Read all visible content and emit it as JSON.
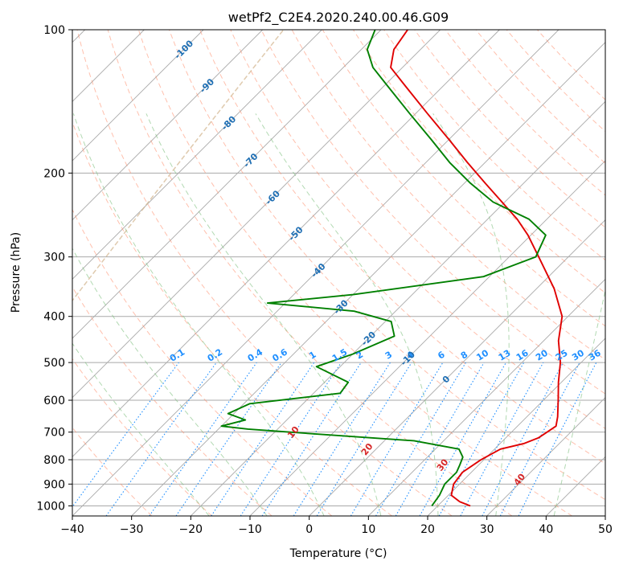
{
  "chart_data": {
    "type": "line",
    "subtype": "skew-T log-p diagram",
    "title": "wetPf2_C2E4.2020.240.00.46.G09",
    "xlabel": "Temperature (°C)",
    "ylabel": "Pressure (hPa)",
    "xlim": [
      -40,
      50
    ],
    "ylim": [
      1050,
      100
    ],
    "y_scale": "log",
    "x_ticks": [
      -40,
      -30,
      -20,
      -10,
      0,
      10,
      20,
      30,
      40,
      50
    ],
    "x_tick_labels": [
      "−40",
      "−30",
      "−20",
      "−10",
      "0",
      "10",
      "20",
      "30",
      "40",
      "50"
    ],
    "y_ticks": [
      100,
      200,
      300,
      400,
      500,
      600,
      700,
      800,
      900,
      1000
    ],
    "y_tick_labels": [
      "100",
      "200",
      "300",
      "400",
      "500",
      "600",
      "700",
      "800",
      "900",
      "1000"
    ],
    "grid": "horizontal isobars and skewed isotherms",
    "colors": {
      "temperature": "#e00000",
      "dewpoint": "#008000",
      "dry_adiabat": "#ff8c69",
      "moist_adiabat": "#7fbf7f",
      "mixing_ratio": "#1f8fff",
      "dry_label": "#d62728",
      "moist_label": "#1f6fb4",
      "grid": "#a9a9a9",
      "ccl_curve": "#d2b48c"
    },
    "series": [
      {
        "role": "temperature",
        "points": [
          {
            "p": 1000,
            "t": 25.5
          },
          {
            "p": 980,
            "t": 23.0
          },
          {
            "p": 950,
            "t": 20.5
          },
          {
            "p": 900,
            "t": 19.0
          },
          {
            "p": 850,
            "t": 18.5
          },
          {
            "p": 800,
            "t": 19.5
          },
          {
            "p": 760,
            "t": 21.0
          },
          {
            "p": 740,
            "t": 24.0
          },
          {
            "p": 720,
            "t": 25.5
          },
          {
            "p": 700,
            "t": 26.0
          },
          {
            "p": 680,
            "t": 26.5
          },
          {
            "p": 650,
            "t": 25.2
          },
          {
            "p": 600,
            "t": 22.5
          },
          {
            "p": 550,
            "t": 19.5
          },
          {
            "p": 500,
            "t": 16.5
          },
          {
            "p": 450,
            "t": 12.5
          },
          {
            "p": 400,
            "t": 9.0
          },
          {
            "p": 350,
            "t": 3.0
          },
          {
            "p": 300,
            "t": -5.0
          },
          {
            "p": 270,
            "t": -10.5
          },
          {
            "p": 250,
            "t": -15.0
          },
          {
            "p": 230,
            "t": -20.5
          },
          {
            "p": 210,
            "t": -26.5
          },
          {
            "p": 190,
            "t": -33.0
          },
          {
            "p": 170,
            "t": -40.0
          },
          {
            "p": 150,
            "t": -48.0
          },
          {
            "p": 130,
            "t": -57.0
          },
          {
            "p": 120,
            "t": -62.0
          },
          {
            "p": 110,
            "t": -64.5
          },
          {
            "p": 100,
            "t": -65.5
          }
        ]
      },
      {
        "role": "dewpoint",
        "points": [
          {
            "p": 1000,
            "t": 19.0
          },
          {
            "p": 950,
            "t": 18.5
          },
          {
            "p": 900,
            "t": 17.5
          },
          {
            "p": 850,
            "t": 17.5
          },
          {
            "p": 820,
            "t": 16.8
          },
          {
            "p": 790,
            "t": 16.0
          },
          {
            "p": 760,
            "t": 14.0
          },
          {
            "p": 730,
            "t": 5.0
          },
          {
            "p": 710,
            "t": -10.0
          },
          {
            "p": 690,
            "t": -25.0
          },
          {
            "p": 680,
            "t": -30.0
          },
          {
            "p": 660,
            "t": -27.0
          },
          {
            "p": 640,
            "t": -31.0
          },
          {
            "p": 610,
            "t": -29.0
          },
          {
            "p": 580,
            "t": -15.5
          },
          {
            "p": 550,
            "t": -16.0
          },
          {
            "p": 510,
            "t": -24.0
          },
          {
            "p": 480,
            "t": -20.0
          },
          {
            "p": 440,
            "t": -16.0
          },
          {
            "p": 410,
            "t": -19.0
          },
          {
            "p": 390,
            "t": -27.0
          },
          {
            "p": 375,
            "t": -43.0
          },
          {
            "p": 360,
            "t": -30.0
          },
          {
            "p": 330,
            "t": -11.0
          },
          {
            "p": 300,
            "t": -5.5
          },
          {
            "p": 270,
            "t": -7.5
          },
          {
            "p": 250,
            "t": -13.0
          },
          {
            "p": 230,
            "t": -22.0
          },
          {
            "p": 210,
            "t": -29.0
          },
          {
            "p": 190,
            "t": -36.0
          },
          {
            "p": 170,
            "t": -43.0
          },
          {
            "p": 150,
            "t": -51.0
          },
          {
            "p": 130,
            "t": -60.0
          },
          {
            "p": 120,
            "t": -65.0
          },
          {
            "p": 110,
            "t": -69.0
          },
          {
            "p": 100,
            "t": -71.0
          }
        ]
      }
    ],
    "dry_adiabats_C": [
      -30,
      -20,
      -10,
      0,
      10,
      20,
      30,
      40,
      50,
      60,
      70,
      80,
      90,
      100,
      110,
      120,
      130,
      140,
      150,
      160,
      170
    ],
    "dry_adiabat_labels": [
      {
        "text": "10",
        "theta": 10
      },
      {
        "text": "20",
        "theta": 20
      },
      {
        "text": "30",
        "theta": 30
      },
      {
        "text": "40",
        "theta": 40
      }
    ],
    "moist_adiabats_C": [
      -20,
      -10,
      0,
      10,
      20,
      30,
      40
    ],
    "mixing_ratios_gkg": [
      0.1,
      0.2,
      0.4,
      0.6,
      1,
      1.5,
      2,
      3,
      4,
      6,
      8,
      10,
      13,
      16,
      20,
      25,
      30,
      36
    ],
    "mixing_ratio_labels": [
      "0.1",
      "0.2",
      "0.4",
      "0.6",
      "1",
      "1.5",
      "2",
      "3",
      "4",
      "6",
      "8",
      "10",
      "13",
      "16",
      "20",
      "25",
      "30",
      "36"
    ],
    "isotherm_labels": [
      {
        "text": "-100",
        "p": 110
      },
      {
        "text": "-90",
        "p": 131
      },
      {
        "text": "-80",
        "p": 157
      },
      {
        "text": "-70",
        "p": 188
      },
      {
        "text": "-60",
        "p": 225
      },
      {
        "text": "-50",
        "p": 268
      },
      {
        "text": "-40",
        "p": 320
      },
      {
        "text": "-30",
        "p": 382
      },
      {
        "text": "-20",
        "p": 445
      },
      {
        "text": "-10",
        "p": 490
      },
      {
        "text": "0",
        "p": 542
      }
    ]
  }
}
